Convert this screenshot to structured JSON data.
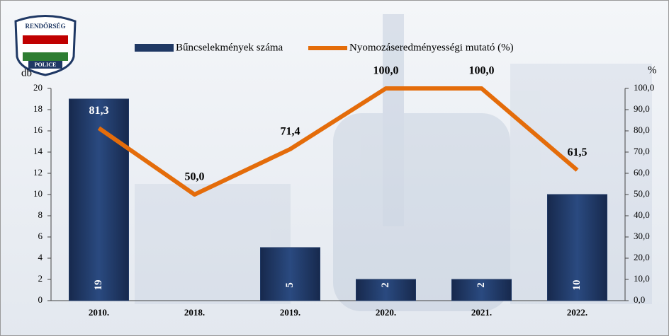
{
  "logo": {
    "top": "RENDŐRSÉG",
    "bottom": "POLICE"
  },
  "chart_data": {
    "type": "bar-line",
    "categories": [
      "2010.",
      "2018.",
      "2019.",
      "2020.",
      "2021.",
      "2022."
    ],
    "y_label": "db",
    "y2_label": "%",
    "ylim": [
      0,
      20
    ],
    "yticks": [
      0,
      2,
      4,
      6,
      8,
      10,
      12,
      14,
      16,
      18,
      20
    ],
    "y2lim": [
      0,
      100
    ],
    "y2ticks": [
      {
        "value": 0,
        "label": "0,0"
      },
      {
        "value": 10,
        "label": "10,0"
      },
      {
        "value": 20,
        "label": "20,0"
      },
      {
        "value": 30,
        "label": "30,0"
      },
      {
        "value": 40,
        "label": "40,0"
      },
      {
        "value": 50,
        "label": "50,0"
      },
      {
        "value": 60,
        "label": "60,0"
      },
      {
        "value": 70,
        "label": "70,0"
      },
      {
        "value": 80,
        "label": "80,0"
      },
      {
        "value": 90,
        "label": "90,0"
      },
      {
        "value": 100,
        "label": "100,0"
      }
    ],
    "series": [
      {
        "name": "Bűncselekmények száma",
        "type": "bar",
        "color": "#1f3864",
        "values": [
          19,
          null,
          5,
          2,
          2,
          10
        ]
      },
      {
        "name": "Nyomozáseredményességi mutató (%)",
        "type": "line",
        "axis": "y2",
        "color": "#e46c0a",
        "values": [
          81.3,
          50,
          71.4,
          100,
          100,
          61.5
        ],
        "value_labels": [
          "81,3",
          "50,0",
          "71,4",
          "100,0",
          "100,0",
          "61,5"
        ]
      }
    ]
  }
}
